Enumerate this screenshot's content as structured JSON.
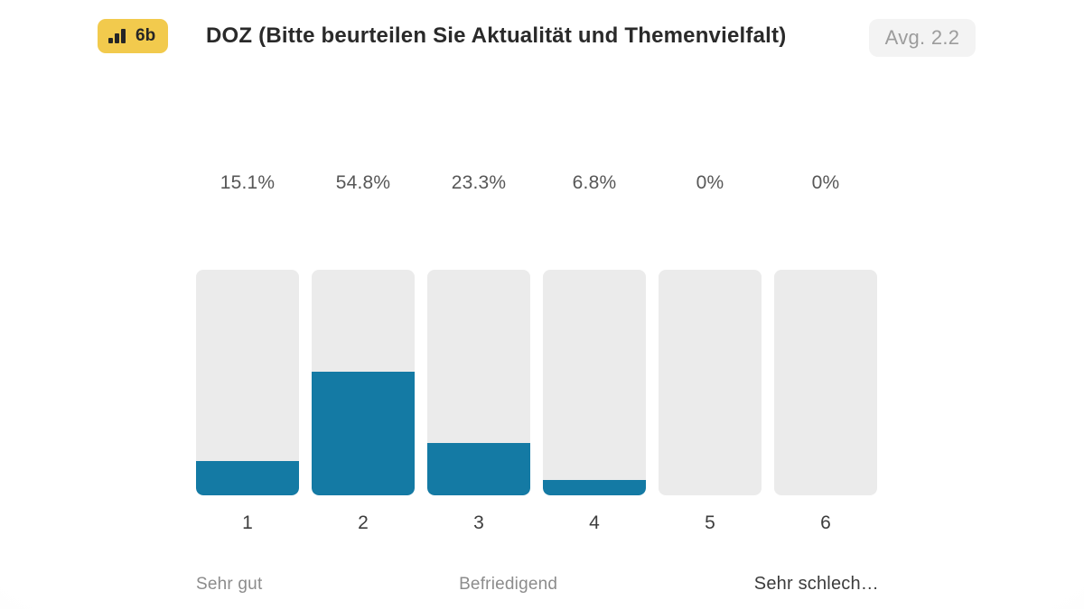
{
  "header": {
    "badge_label": "6b",
    "badge_icon": "bar-chart-icon",
    "badge_color": "#F2CA4D",
    "title": "DOZ (Bitte beurteilen Sie Aktualität und Themenvielfalt)",
    "average_label": "Avg. 2.2"
  },
  "chart_data": {
    "type": "bar",
    "title": "DOZ (Bitte beurteilen Sie Aktualität und Themenvielfalt)",
    "categories": [
      "1",
      "2",
      "3",
      "4",
      "5",
      "6"
    ],
    "values": [
      15.1,
      54.8,
      23.3,
      6.8,
      0,
      0
    ],
    "value_labels": [
      "15.1%",
      "54.8%",
      "23.3%",
      "6.8%",
      "0%",
      "0%"
    ],
    "average": 2.2,
    "ylim": [
      0,
      100
    ],
    "grid": false,
    "legend": "none",
    "scale_labels": [
      "Sehr gut",
      "Befriedigend",
      "Sehr schlech…"
    ],
    "bar_fill_color": "#147AA4",
    "bar_track_color": "#EBEBEB"
  }
}
